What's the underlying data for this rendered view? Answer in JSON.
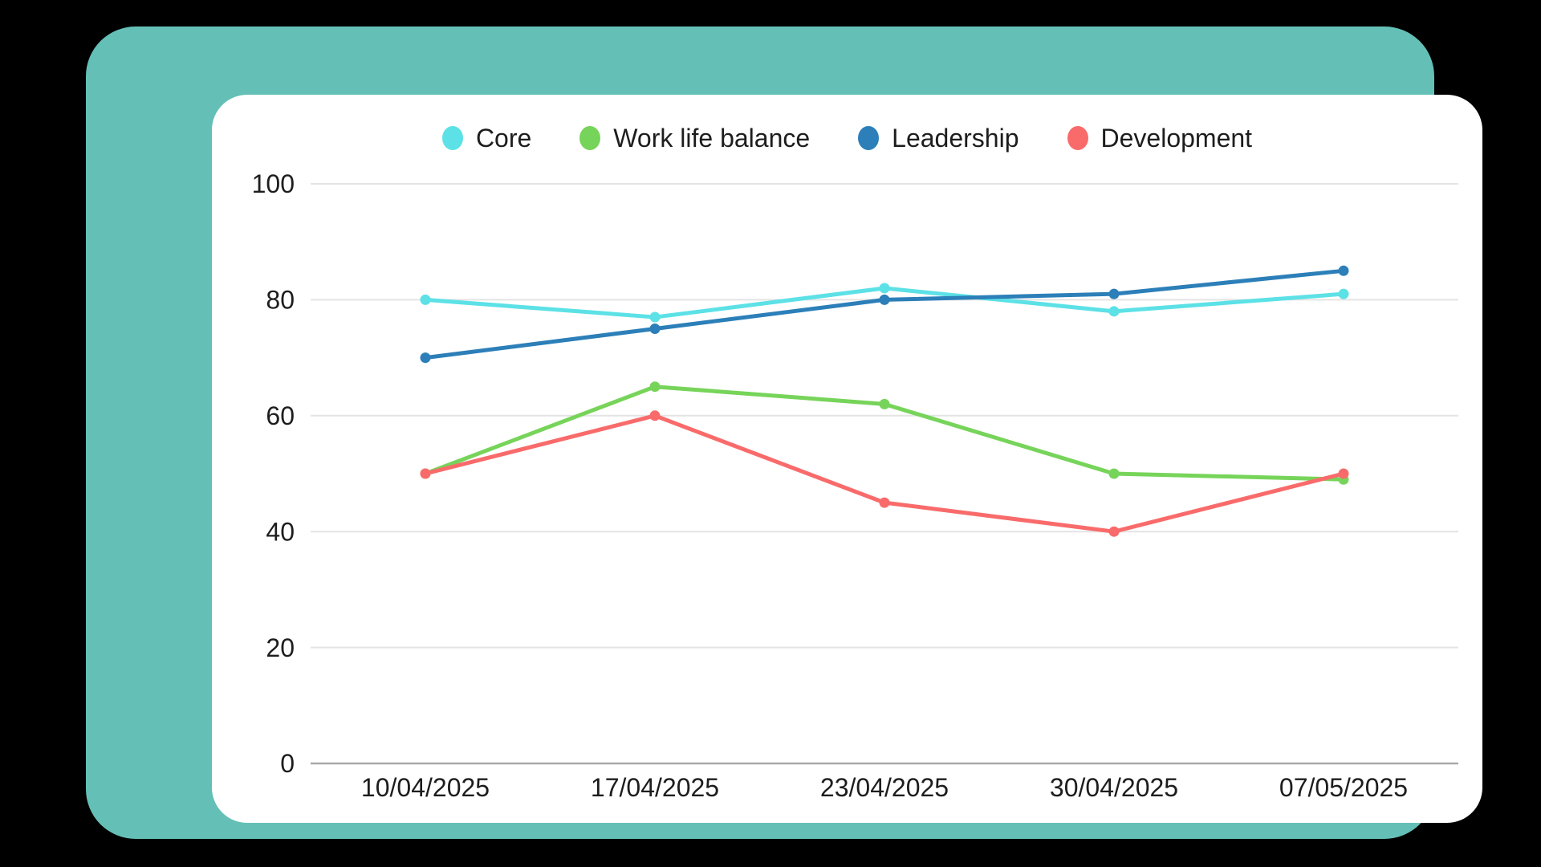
{
  "frame": {
    "background_color": "#000000",
    "frame_color": "#64C0B7",
    "card_color": "#FFFFFF"
  },
  "styles": {
    "grid_color": "#E4E4E4",
    "axis_color": "#A9A9A9",
    "label_color": "#1D1D1D"
  },
  "chart_data": {
    "type": "line",
    "title": "",
    "xlabel": "",
    "ylabel": "",
    "grid": true,
    "legend_position": "top",
    "ylim": [
      0,
      100
    ],
    "yticks": [
      0,
      20,
      40,
      60,
      80,
      100
    ],
    "categories": [
      "10/04/2025",
      "17/04/2025",
      "23/04/2025",
      "30/04/2025",
      "07/05/2025"
    ],
    "series": [
      {
        "name": "Core",
        "color": "#5CE1E6",
        "values": [
          80,
          77,
          82,
          78,
          81
        ]
      },
      {
        "name": "Work life balance",
        "color": "#77D45A",
        "values": [
          50,
          65,
          62,
          50,
          49
        ]
      },
      {
        "name": "Leadership",
        "color": "#2C7FB8",
        "values": [
          70,
          75,
          80,
          81,
          85
        ]
      },
      {
        "name": "Development",
        "color": "#F96B6B",
        "values": [
          50,
          60,
          45,
          40,
          50
        ]
      }
    ]
  }
}
